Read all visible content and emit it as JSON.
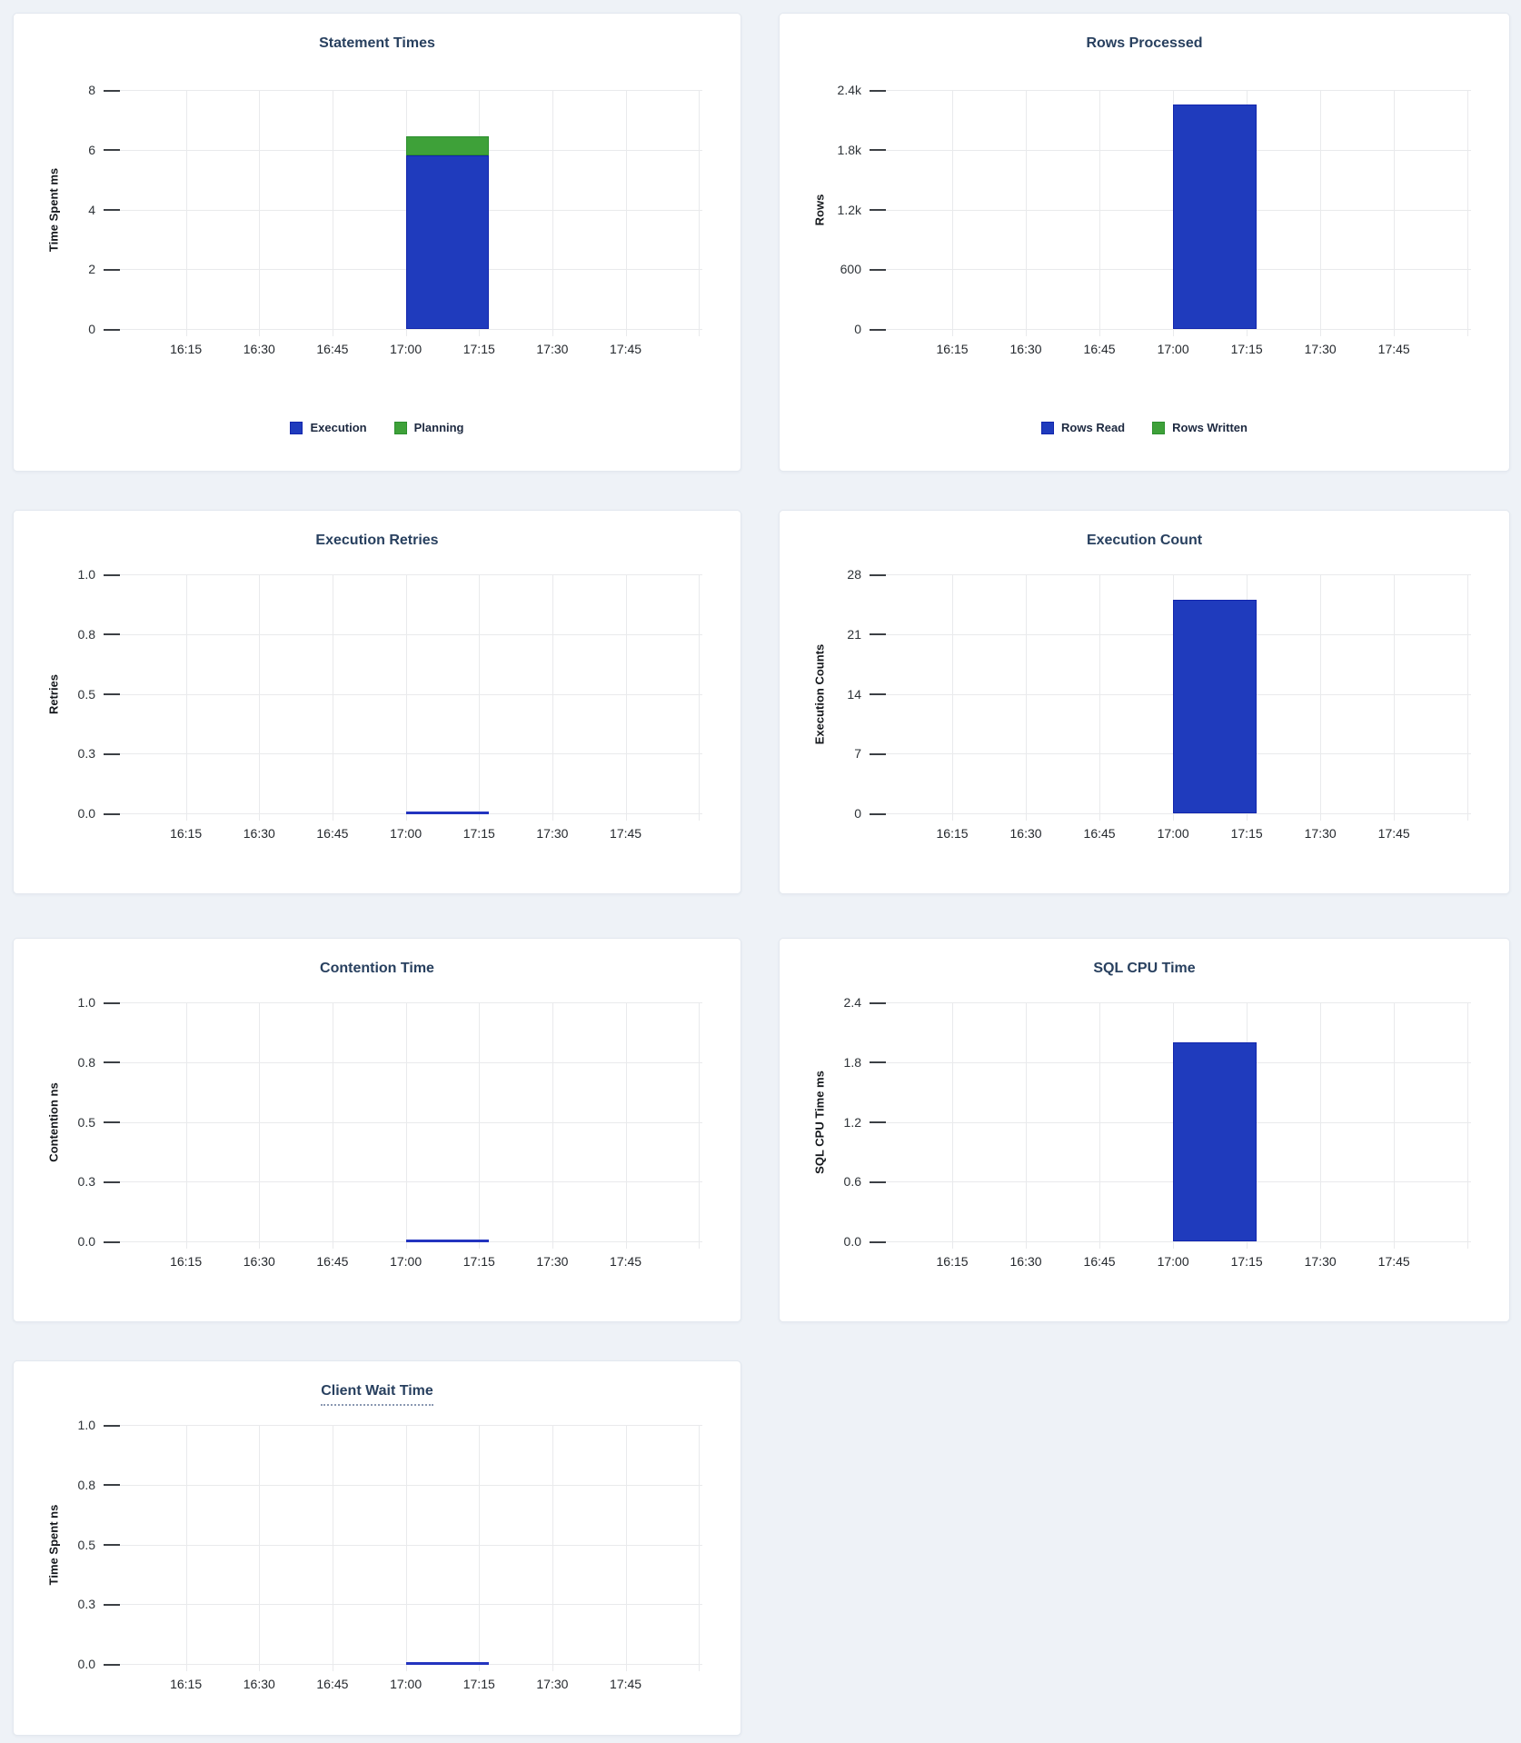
{
  "page": {
    "background": "#eef2f7"
  },
  "palette": {
    "blue_fill": "#1f3bbd",
    "blue_border": "#1226ad",
    "green_fill": "#3ea139",
    "green_border": "#2c8f2e",
    "zero_line": "#2334bf",
    "title_color": "#28405f",
    "gridline": "#e9eaec"
  },
  "x_axis": {
    "ticks": [
      "16:15",
      "16:30",
      "16:45",
      "17:00",
      "17:15",
      "17:30",
      "17:45"
    ]
  },
  "bar_window": {
    "start": "17:00",
    "end": "17:17"
  },
  "chart_data": [
    {
      "id": "statement-times",
      "type": "bar",
      "title": "Statement Times",
      "ylabel": "Time Spent ms",
      "ymax": 8,
      "ylim": [
        0,
        8
      ],
      "yticks": [
        "8",
        "6",
        "4",
        "2",
        "0"
      ],
      "legend": true,
      "underlined_title": false,
      "grid": true,
      "series": [
        {
          "name": "Execution",
          "value": 5.8,
          "fill": "#1f3bbd",
          "border": "#1226ad"
        },
        {
          "name": "Planning",
          "value": 0.65,
          "fill": "#3ea139",
          "border": "#2c8f2e"
        }
      ]
    },
    {
      "id": "rows-processed",
      "type": "bar",
      "title": "Rows Processed",
      "ylabel": "Rows",
      "ymax": 2400,
      "ylim": [
        0,
        2400
      ],
      "yticks": [
        "2.4k",
        "1.8k",
        "1.2k",
        "600",
        "0"
      ],
      "legend": true,
      "underlined_title": false,
      "grid": true,
      "series": [
        {
          "name": "Rows Read",
          "value": 2250,
          "fill": "#1f3bbd",
          "border": "#1226ad"
        },
        {
          "name": "Rows Written",
          "value": 0,
          "fill": "#3ea139",
          "border": "#2c8f2e"
        }
      ]
    },
    {
      "id": "execution-retries",
      "type": "bar",
      "title": "Execution Retries",
      "ylabel": "Retries",
      "ymax": 1,
      "ylim": [
        0,
        1
      ],
      "yticks": [
        "1.0",
        "0.8",
        "0.5",
        "0.3",
        "0.0"
      ],
      "legend": false,
      "underlined_title": false,
      "grid": true,
      "series": [
        {
          "name": "Retries",
          "value": 0,
          "fill": "#1f3bbd",
          "border": "#1226ad"
        }
      ]
    },
    {
      "id": "execution-count",
      "type": "bar",
      "title": "Execution Count",
      "ylabel": "Execution Counts",
      "ymax": 28,
      "ylim": [
        0,
        28
      ],
      "yticks": [
        "28",
        "21",
        "14",
        "7",
        "0"
      ],
      "legend": false,
      "underlined_title": false,
      "grid": true,
      "series": [
        {
          "name": "Execution Count",
          "value": 25,
          "fill": "#1f3bbd",
          "border": "#1226ad"
        }
      ]
    },
    {
      "id": "contention-time",
      "type": "bar",
      "title": "Contention Time",
      "ylabel": "Contention ns",
      "ymax": 1,
      "ylim": [
        0,
        1
      ],
      "yticks": [
        "1.0",
        "0.8",
        "0.5",
        "0.3",
        "0.0"
      ],
      "legend": false,
      "underlined_title": false,
      "grid": true,
      "series": [
        {
          "name": "Contention",
          "value": 0,
          "fill": "#1f3bbd",
          "border": "#1226ad"
        }
      ]
    },
    {
      "id": "sql-cpu-time",
      "type": "bar",
      "title": "SQL CPU Time",
      "ylabel": "SQL CPU Time ms",
      "ymax": 2.4,
      "ylim": [
        0,
        2.4
      ],
      "yticks": [
        "2.4",
        "1.8",
        "1.2",
        "0.6",
        "0.0"
      ],
      "legend": false,
      "underlined_title": false,
      "grid": true,
      "series": [
        {
          "name": "SQL CPU Time",
          "value": 2.0,
          "fill": "#1f3bbd",
          "border": "#1226ad"
        }
      ]
    },
    {
      "id": "client-wait-time",
      "type": "bar",
      "title": "Client Wait Time",
      "ylabel": "Time Spent ns",
      "ymax": 1,
      "ylim": [
        0,
        1
      ],
      "yticks": [
        "1.0",
        "0.8",
        "0.5",
        "0.3",
        "0.0"
      ],
      "legend": false,
      "underlined_title": true,
      "grid": true,
      "series": [
        {
          "name": "Client Wait Time",
          "value": 0,
          "fill": "#1f3bbd",
          "border": "#1226ad"
        }
      ]
    }
  ]
}
